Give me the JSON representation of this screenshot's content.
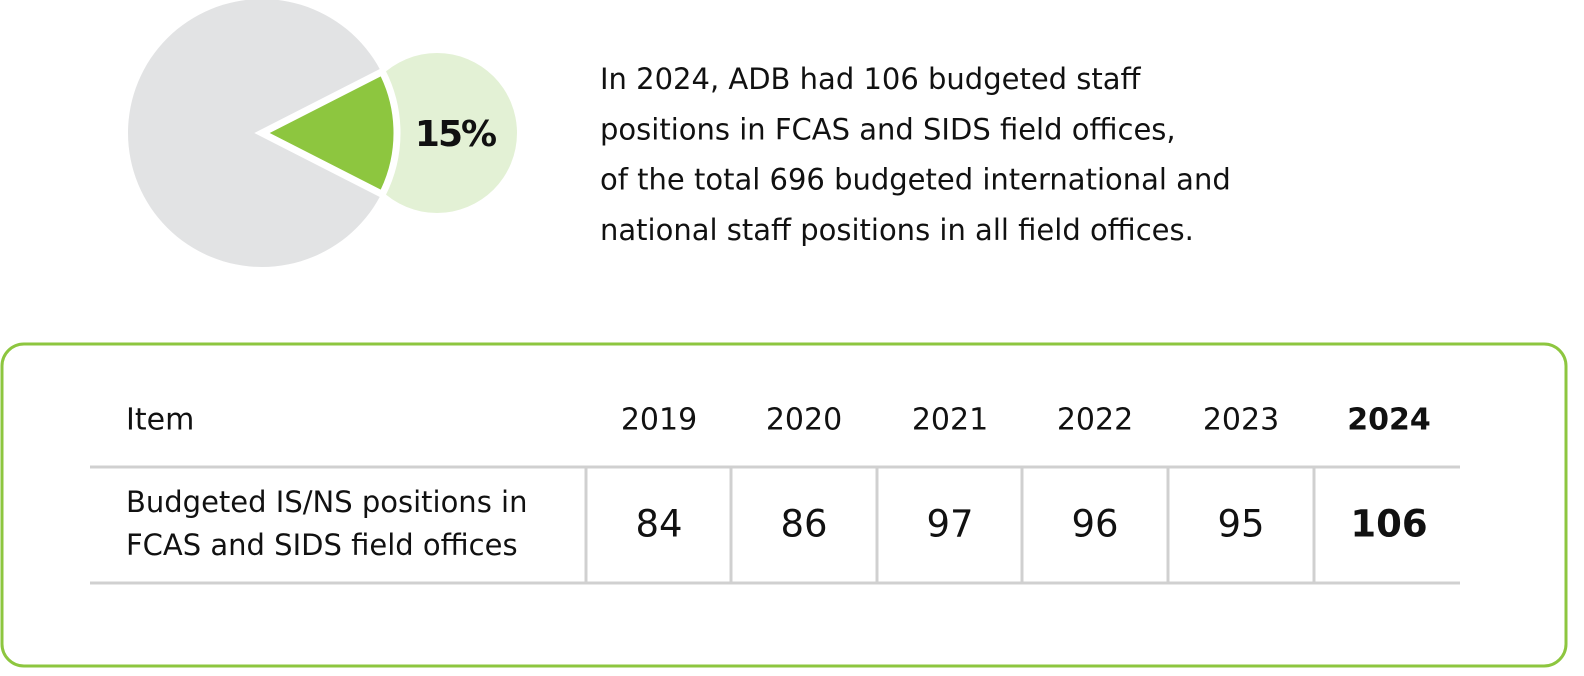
{
  "chart_data": {
    "type": "pie",
    "values": [
      15
    ],
    "value_labels": [
      "15%"
    ],
    "colors": [
      "#8dc63f"
    ],
    "highlight_color": "#e3f1d5",
    "rest_color": "#e2e3e4"
  },
  "text": {
    "lines": [
      "In 2024, ADB had 106 budgeted staff",
      "positions in FCAS and SIDS field offices,",
      "of the total 696 budgeted international and",
      "national staff positions in all field offices."
    ]
  },
  "table": {
    "header": [
      "Item",
      "2019",
      "2020",
      "2021",
      "2022",
      "2023",
      "2024"
    ],
    "rows": [
      {
        "label": [
          "Budgeted IS/NS positions in",
          "FCAS and SIDS field offices"
        ],
        "values": [
          84,
          86,
          97,
          96,
          95,
          106
        ]
      }
    ]
  }
}
